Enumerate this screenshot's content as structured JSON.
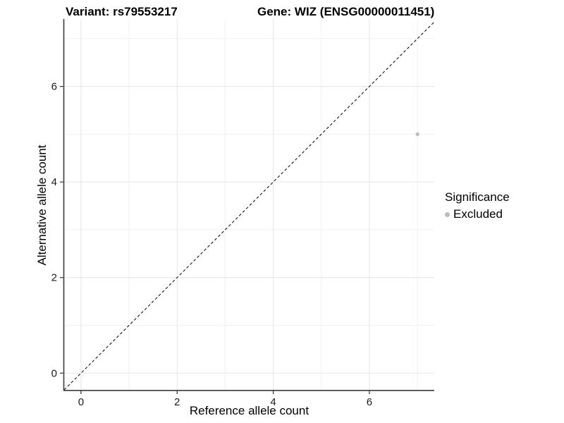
{
  "chart_data": {
    "type": "scatter",
    "title_left": "Variant: rs79553217",
    "title_right": "Gene: WIZ (ENSG00000011451)",
    "xlabel": "Reference allele count",
    "ylabel": "Alternative allele count",
    "xlim": [
      -0.35,
      7.35
    ],
    "ylim": [
      -0.35,
      7.41
    ],
    "x_major_ticks": [
      0,
      2,
      4,
      6
    ],
    "y_major_ticks": [
      0,
      2,
      4,
      6
    ],
    "x_minor_ticks": [
      1,
      3,
      5,
      7
    ],
    "y_minor_ticks": [
      1,
      3,
      5,
      7
    ],
    "points": [
      {
        "x": 7,
        "y": 5,
        "series": "Excluded"
      }
    ],
    "reference_line": {
      "slope": 1,
      "intercept": 0,
      "style": "dashed"
    },
    "legend": {
      "title": "Significance",
      "position": "right",
      "entries": [
        {
          "label": "Excluded",
          "color": "#bcbcbc"
        }
      ]
    },
    "grid": true,
    "colors": {
      "point": "#bcbcbc",
      "grid_major": "#e5e5e5",
      "grid_minor": "#f1f1f1",
      "axis_line": "#3c3c3c",
      "tick_mark": "#333333",
      "tick_label": "#1a1a1a",
      "reference_line": "#000000",
      "background": "#ffffff"
    }
  }
}
